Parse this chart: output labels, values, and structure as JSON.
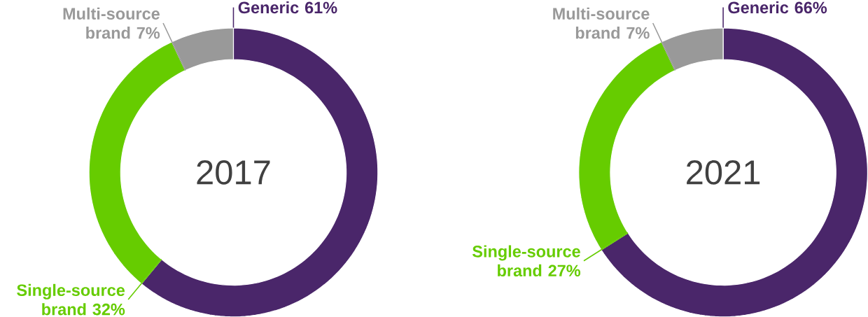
{
  "chart_data": [
    {
      "type": "donut",
      "title": "2017",
      "categories": [
        "Generic",
        "Single-source brand",
        "Multi-source brand"
      ],
      "values": [
        61,
        32,
        7
      ],
      "colors": [
        "#4a266a",
        "#66cc00",
        "#999999"
      ],
      "value_labels": [
        "61%",
        "32%",
        "7%"
      ]
    },
    {
      "type": "donut",
      "title": "2021",
      "categories": [
        "Generic",
        "Single-source brand",
        "Multi-source brand"
      ],
      "values": [
        66,
        27,
        7
      ],
      "colors": [
        "#4a266a",
        "#66cc00",
        "#999999"
      ],
      "value_labels": [
        "66%",
        "27%",
        "7%"
      ]
    }
  ]
}
